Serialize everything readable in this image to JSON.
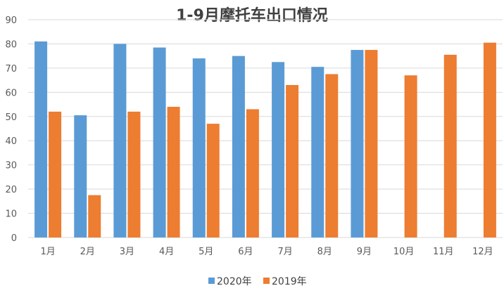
{
  "chart_data": {
    "type": "bar",
    "title": "1-9月摩托车出口情况",
    "categories": [
      "1月",
      "2月",
      "3月",
      "4月",
      "5月",
      "6月",
      "7月",
      "8月",
      "9月",
      "10月",
      "11月",
      "12月"
    ],
    "series": [
      {
        "name": "2020年",
        "color": "#5b9bd5",
        "values": [
          81,
          50.5,
          80,
          78.5,
          74,
          75,
          72.5,
          70.5,
          77.5,
          null,
          null,
          null
        ]
      },
      {
        "name": "2019年",
        "color": "#ed7d31",
        "values": [
          52,
          17.5,
          52,
          54,
          47,
          53,
          63,
          67.5,
          77.5,
          67,
          75.5,
          80.5
        ]
      }
    ],
    "ylim": [
      0,
      90
    ],
    "yticks": [
      0,
      10,
      20,
      30,
      40,
      50,
      60,
      70,
      80,
      90
    ],
    "grid": true,
    "legend": "bottom"
  }
}
